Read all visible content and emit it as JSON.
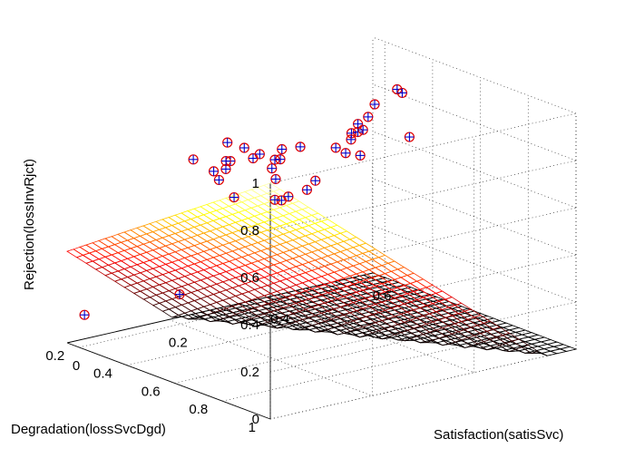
{
  "chart_data": {
    "type": "scatter",
    "subtype": "3d-surface-with-scatter",
    "xlabel": "Satisfaction(satisSvc)",
    "ylabel": "Degradation(lossSvcDgd)",
    "zlabel": "Rejection(lossInvRjct)",
    "xlim": [
      0,
      0.6
    ],
    "ylim": [
      0.15,
      1
    ],
    "zlim": [
      0,
      1
    ],
    "x_ticks": [
      "0",
      "0.2",
      "0.4",
      "0.6"
    ],
    "y_ticks": [
      "0.2",
      "0.4",
      "0.6",
      "0.8",
      "1"
    ],
    "z_ticks": [
      "0",
      "0.2",
      "0.4",
      "0.6",
      "0.8",
      "1"
    ],
    "grid": true,
    "surface": {
      "description_equation": "z = 1 - 1.85*x - 0.72*(1 - y) clipped to [0,1]",
      "a": 1.0,
      "bx": -1.85,
      "by": 0.72,
      "c": -0.72,
      "colormap": "hot",
      "n_x": 32,
      "n_y": 32
    },
    "points": [
      {
        "x": 0.02,
        "y": 0.98,
        "z": 1.0
      },
      {
        "x": 0.05,
        "y": 0.9,
        "z": 1.0
      },
      {
        "x": 0.06,
        "y": 0.8,
        "z": 1.0
      },
      {
        "x": 0.08,
        "y": 0.65,
        "z": 1.0
      },
      {
        "x": 0.03,
        "y": 0.75,
        "z": 0.95
      },
      {
        "x": 0.04,
        "y": 0.7,
        "z": 0.88
      },
      {
        "x": 0.09,
        "y": 0.85,
        "z": 1.0
      },
      {
        "x": 0.06,
        "y": 0.55,
        "z": 0.9
      },
      {
        "x": 0.12,
        "y": 0.7,
        "z": 0.95
      },
      {
        "x": 0.1,
        "y": 0.62,
        "z": 0.9
      },
      {
        "x": 0.11,
        "y": 0.58,
        "z": 0.88
      },
      {
        "x": 0.1,
        "y": 0.55,
        "z": 0.83
      },
      {
        "x": 0.2,
        "y": 0.95,
        "z": 1.0
      },
      {
        "x": 0.14,
        "y": 0.75,
        "z": 0.98
      },
      {
        "x": 0.16,
        "y": 0.55,
        "z": 0.9
      },
      {
        "x": 0.22,
        "y": 0.55,
        "z": 0.82
      },
      {
        "x": 0.32,
        "y": 0.9,
        "z": 1.0
      },
      {
        "x": 0.3,
        "y": 0.7,
        "z": 0.95
      },
      {
        "x": 0.27,
        "y": 0.55,
        "z": 0.85
      },
      {
        "x": 0.35,
        "y": 0.62,
        "z": 0.9
      },
      {
        "x": 0.43,
        "y": 0.52,
        "z": 0.94
      },
      {
        "x": 0.46,
        "y": 0.55,
        "z": 1.0
      },
      {
        "x": 0.47,
        "y": 0.55,
        "z": 0.98
      },
      {
        "x": 0.45,
        "y": 0.45,
        "z": 0.85
      },
      {
        "x": 0.43,
        "y": 0.45,
        "z": 0.83
      },
      {
        "x": 0.44,
        "y": 0.45,
        "z": 0.8
      },
      {
        "x": 0.44,
        "y": 0.4,
        "z": 0.74
      },
      {
        "x": 0.41,
        "y": 0.4,
        "z": 0.72
      },
      {
        "x": 0.42,
        "y": 0.42,
        "z": 0.7
      },
      {
        "x": 0.37,
        "y": 0.4,
        "z": 0.6
      },
      {
        "x": 0.33,
        "y": 0.45,
        "z": 0.6
      },
      {
        "x": 0.28,
        "y": 0.45,
        "z": 0.58
      },
      {
        "x": 0.27,
        "y": 0.5,
        "z": 0.62
      },
      {
        "x": 0.22,
        "y": 0.55,
        "z": 0.65
      },
      {
        "x": 0.14,
        "y": 0.55,
        "z": 0.7
      },
      {
        "x": 0.08,
        "y": 0.45,
        "z": 0.28
      },
      {
        "x": 0.02,
        "y": 0.18,
        "z": 0.12
      }
    ]
  }
}
